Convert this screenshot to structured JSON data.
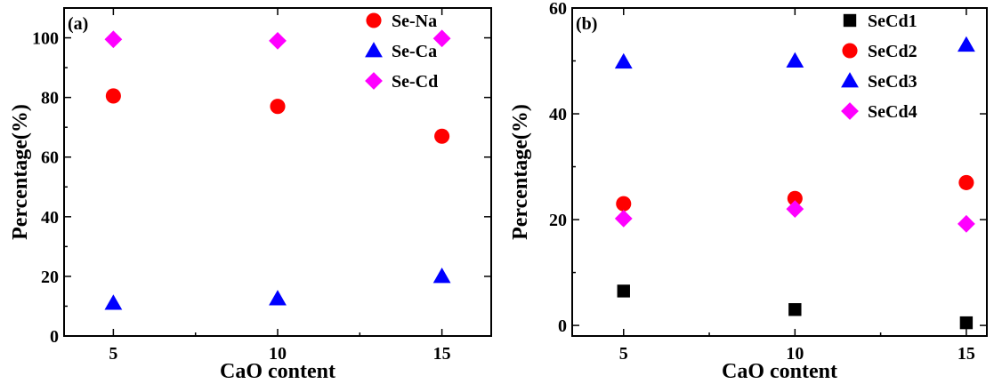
{
  "chart_data": [
    {
      "type": "scatter",
      "panel_label": "(a)",
      "xlabel": "CaO content",
      "ylabel": "Percentage(%)",
      "xlim": [
        3.5,
        16.5
      ],
      "ylim": [
        0,
        110
      ],
      "x_ticks": [
        5,
        10,
        15
      ],
      "y_ticks": [
        0,
        20,
        40,
        60,
        80,
        100
      ],
      "legend_position": "top-right",
      "series": [
        {
          "name": "Se-Na",
          "marker": "circle",
          "color": "#ff0000",
          "x": [
            5,
            10,
            15
          ],
          "y": [
            80.5,
            77,
            67
          ]
        },
        {
          "name": "Se-Ca",
          "marker": "triangle",
          "color": "#0000ff",
          "x": [
            5,
            10,
            15
          ],
          "y": [
            11,
            12.5,
            20
          ]
        },
        {
          "name": "Se-Cd",
          "marker": "diamond",
          "color": "#ff00ff",
          "x": [
            5,
            10,
            15
          ],
          "y": [
            99.5,
            99,
            99.8
          ]
        }
      ]
    },
    {
      "type": "scatter",
      "panel_label": "(b)",
      "xlabel": "CaO content",
      "ylabel": "Percentage(%)",
      "xlim": [
        3.5,
        15.6
      ],
      "ylim": [
        -2,
        60
      ],
      "x_ticks": [
        5,
        10,
        15
      ],
      "y_ticks": [
        0,
        20,
        40,
        60
      ],
      "legend_position": "top-right",
      "series": [
        {
          "name": "SeCd1",
          "marker": "square",
          "color": "#000000",
          "x": [
            5,
            10,
            15
          ],
          "y": [
            6.5,
            3,
            0.5
          ]
        },
        {
          "name": "SeCd2",
          "marker": "circle",
          "color": "#ff0000",
          "x": [
            5,
            10,
            15
          ],
          "y": [
            23,
            24,
            27
          ]
        },
        {
          "name": "SeCd3",
          "marker": "triangle",
          "color": "#0000ff",
          "x": [
            5,
            10,
            15
          ],
          "y": [
            49.8,
            50,
            53
          ]
        },
        {
          "name": "SeCd4",
          "marker": "diamond",
          "color": "#ff00ff",
          "x": [
            5,
            10,
            15
          ],
          "y": [
            20.2,
            22,
            19.2
          ]
        }
      ]
    }
  ]
}
